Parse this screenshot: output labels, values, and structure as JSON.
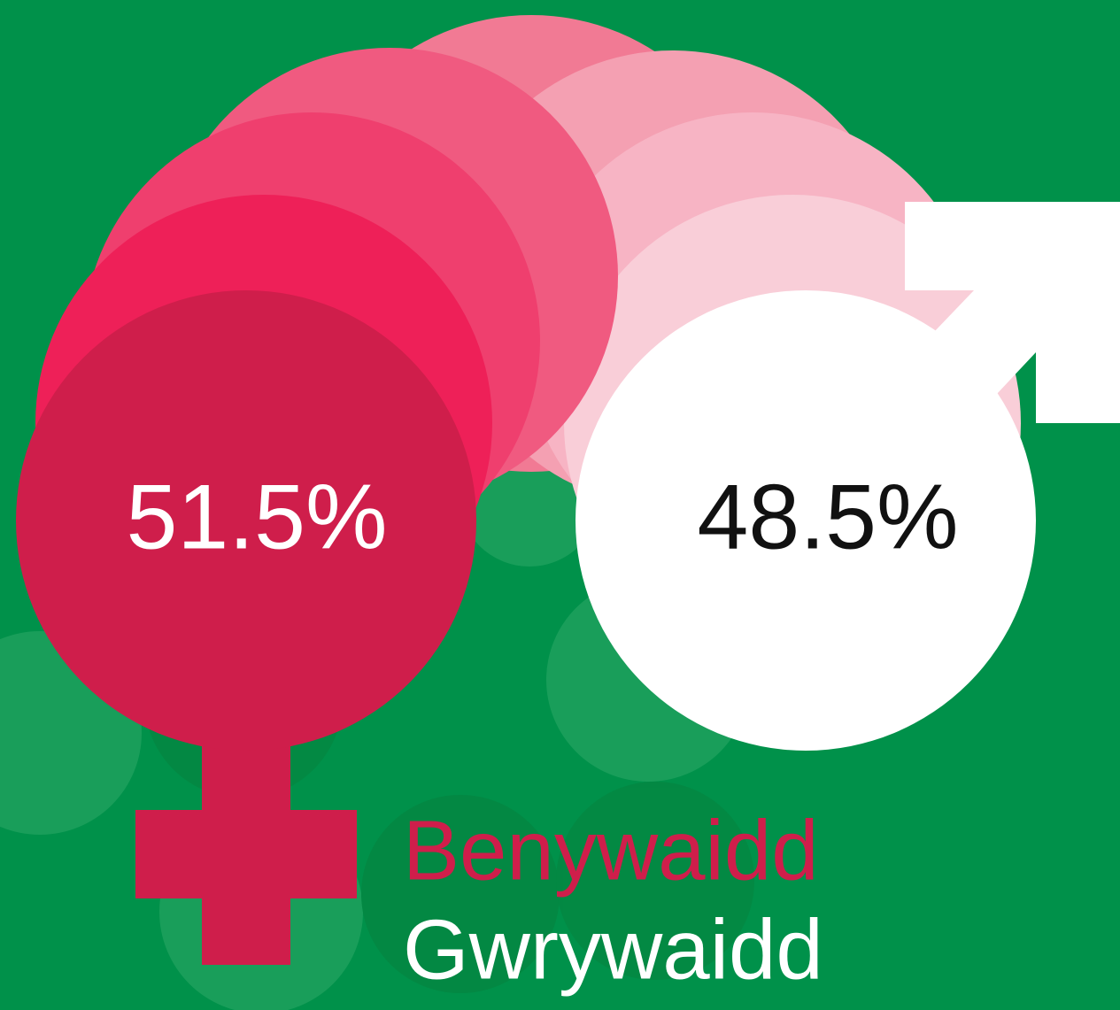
{
  "female": {
    "label": "Benywaidd",
    "value_label": "51.5%"
  },
  "male": {
    "label": "Gwrywaidd",
    "value_label": "48.5%"
  }
}
